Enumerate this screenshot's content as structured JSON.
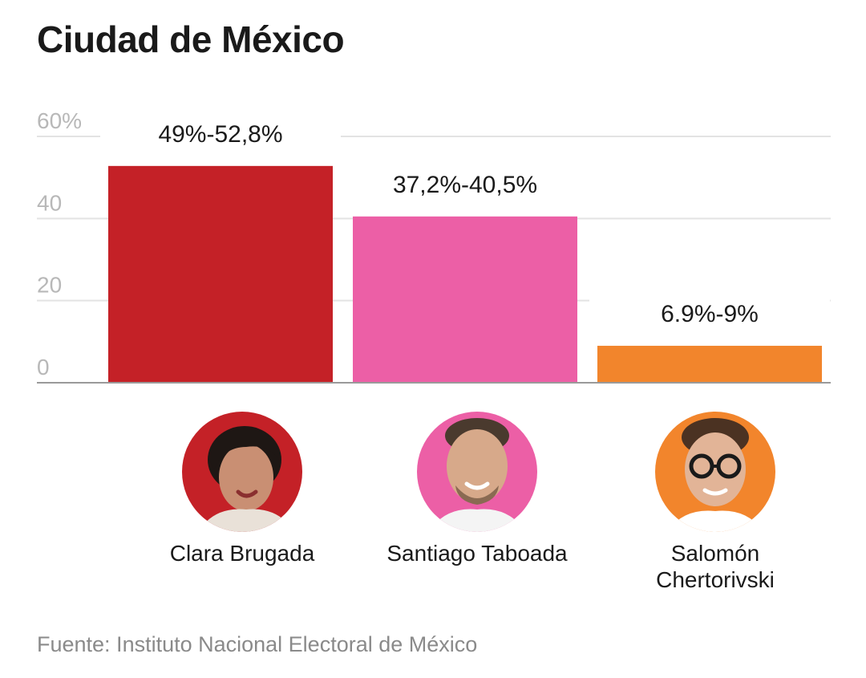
{
  "title": "Ciudad de México",
  "source": "Fuente: Instituto Nacional Electoral de México",
  "colors": {
    "clara": "#c42127",
    "santiago": "#ec5fa6",
    "salomon": "#f2852c",
    "grid": "#e3e3e3",
    "axis": "#9a9a9a",
    "tick_text": "#b8b8b8"
  },
  "chart_data": {
    "type": "bar",
    "title": "Ciudad de México",
    "categories": [
      "Clara Brugada",
      "Santiago Taboada",
      "Salomón Chertorivski"
    ],
    "values": [
      52.8,
      40.5,
      9
    ],
    "ranges": [
      [
        49,
        52.8
      ],
      [
        37.2,
        40.5
      ],
      [
        6.9,
        9
      ]
    ],
    "data_labels": [
      "49%-52,8%",
      "37,2%-40,5%",
      "6.9%-9%"
    ],
    "colors": [
      "#c42127",
      "#ec5fa6",
      "#f2852c"
    ],
    "yticks": [
      0,
      20,
      40,
      60
    ],
    "ytick_labels": [
      "0",
      "20",
      "40",
      "60%"
    ],
    "ylim": [
      0,
      60
    ],
    "xlabel": "",
    "ylabel": "",
    "grid": true
  },
  "candidates": [
    {
      "name_lines": [
        "Clara Brugada"
      ],
      "photo_icon": "candidate-portrait-icon"
    },
    {
      "name_lines": [
        "Santiago Taboada"
      ],
      "photo_icon": "candidate-portrait-icon"
    },
    {
      "name_lines": [
        "Salomón",
        "Chertorivski"
      ],
      "photo_icon": "candidate-portrait-icon"
    }
  ]
}
